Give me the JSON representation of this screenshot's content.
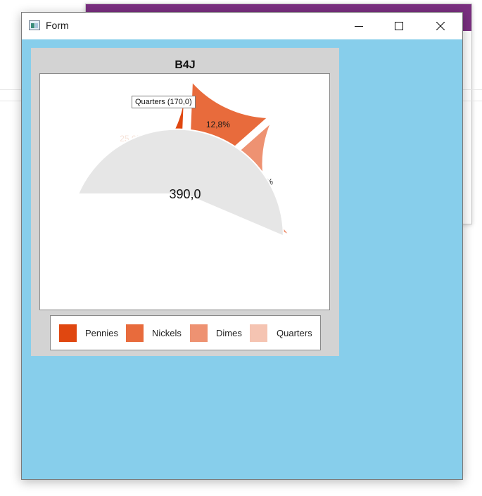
{
  "window": {
    "title": "Form",
    "controls": {
      "minimize": "minimize-icon",
      "maximize": "maximize-icon",
      "close": "close-icon"
    },
    "client_background": "#87ceeb"
  },
  "chart_data": {
    "type": "pie",
    "title": "B4J",
    "center_label": "390,0",
    "tooltip": "Quarters (170,0)",
    "categories": [
      "Pennies",
      "Nickels",
      "Dimes",
      "Quarters"
    ],
    "values": [
      100,
      50,
      70,
      170
    ],
    "slice_labels": [
      "25,6%",
      "12,8%",
      "17,9%",
      ""
    ],
    "colors": [
      "#e04710",
      "#e86b3c",
      "#ee9272",
      "#e6e6e6"
    ],
    "legend_colors": [
      "#e04710",
      "#e86b3c",
      "#ee9272",
      "#f5c4b2"
    ],
    "exploded": [
      true,
      true,
      true,
      false
    ],
    "legend_position": "bottom"
  }
}
